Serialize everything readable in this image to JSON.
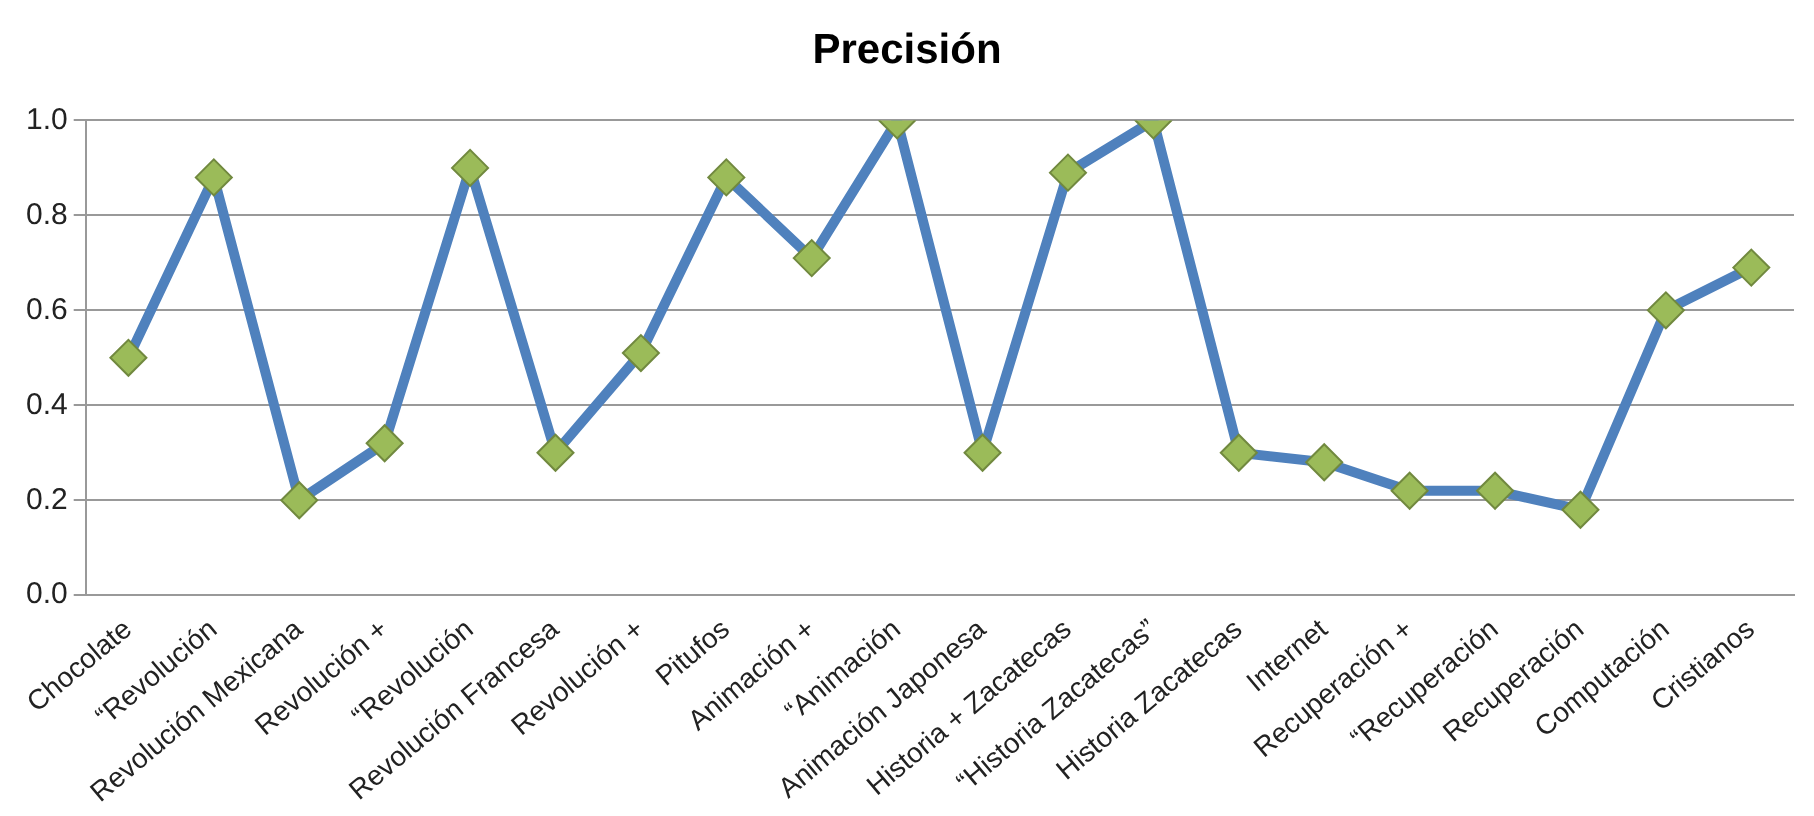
{
  "chart_data": {
    "type": "line",
    "title": "Precisión",
    "categories": [
      "Chocolate",
      "“Revolución",
      "Revolución Mexicana",
      "Revolución +",
      "“Revolución",
      "Revolución Francesa",
      "Revolución +",
      "Pitufos",
      "Animación +",
      "“Animación",
      "Animación Japonesa",
      "Historia + Zacatecas",
      "“Historia Zacatecas”",
      "Historia Zacatecas",
      "Internet",
      "Recuperación +",
      "“Recuperación",
      "Recuperación",
      "Computación",
      "Cristianos"
    ],
    "series": [
      {
        "color": "#4f81bd",
        "values": [
          0.5,
          0.88,
          0.2,
          0.32,
          0.9,
          0.3,
          0.51,
          0.88,
          0.71,
          1.0,
          0.3,
          0.89,
          1.0,
          0.3,
          0.28,
          0.22,
          0.22,
          0.18,
          0.6,
          0.69
        ]
      }
    ],
    "ylim": [
      0,
      1
    ],
    "yticks": [
      {
        "value": 0,
        "label": "0.0"
      },
      {
        "value": 0.2,
        "label": "0.2"
      },
      {
        "value": 0.4,
        "label": "0.4"
      },
      {
        "value": 0.6,
        "label": "0.6"
      },
      {
        "value": 0.8,
        "label": "0.8"
      },
      {
        "value": 1,
        "label": "1.0"
      }
    ],
    "grid": "y",
    "legend": false,
    "marker": "diamond",
    "line_style": "solid"
  }
}
